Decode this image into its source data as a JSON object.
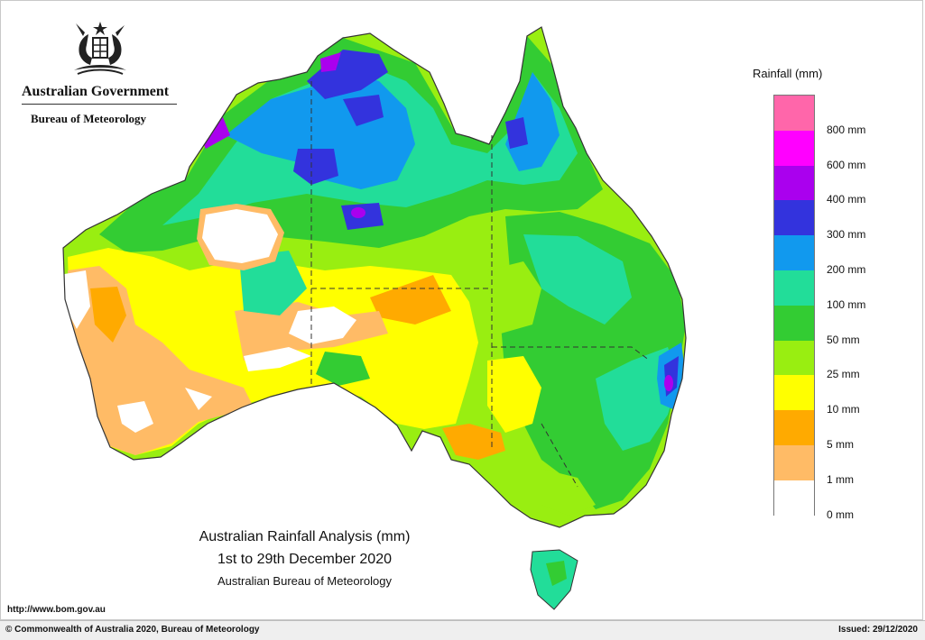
{
  "header": {
    "government": "Australian Government",
    "bureau": "Bureau of Meteorology"
  },
  "map": {
    "title": "Australian Rainfall Analysis (mm)",
    "period": "1st to 29th December 2020",
    "source": "Australian Bureau of Meteorology"
  },
  "legend": {
    "title": "Rainfall (mm)",
    "labels": [
      "800 mm",
      "600 mm",
      "400 mm",
      "300 mm",
      "200 mm",
      "100 mm",
      "50 mm",
      "25 mm",
      "10 mm",
      "5 mm",
      "1 mm",
      "0 mm"
    ],
    "colors": [
      "#ff66aa",
      "#ff00ff",
      "#aa00ee",
      "#3333dd",
      "#1199ee",
      "#22dd99",
      "#33cc33",
      "#99ee11",
      "#ffff00",
      "#ffaa00",
      "#ffbb66",
      "#ffffff"
    ]
  },
  "footer": {
    "url": "http://www.bom.gov.au",
    "copyright": "© Commonwealth of Australia 2020, Bureau of Meteorology",
    "issued": "Issued: 29/12/2020"
  }
}
